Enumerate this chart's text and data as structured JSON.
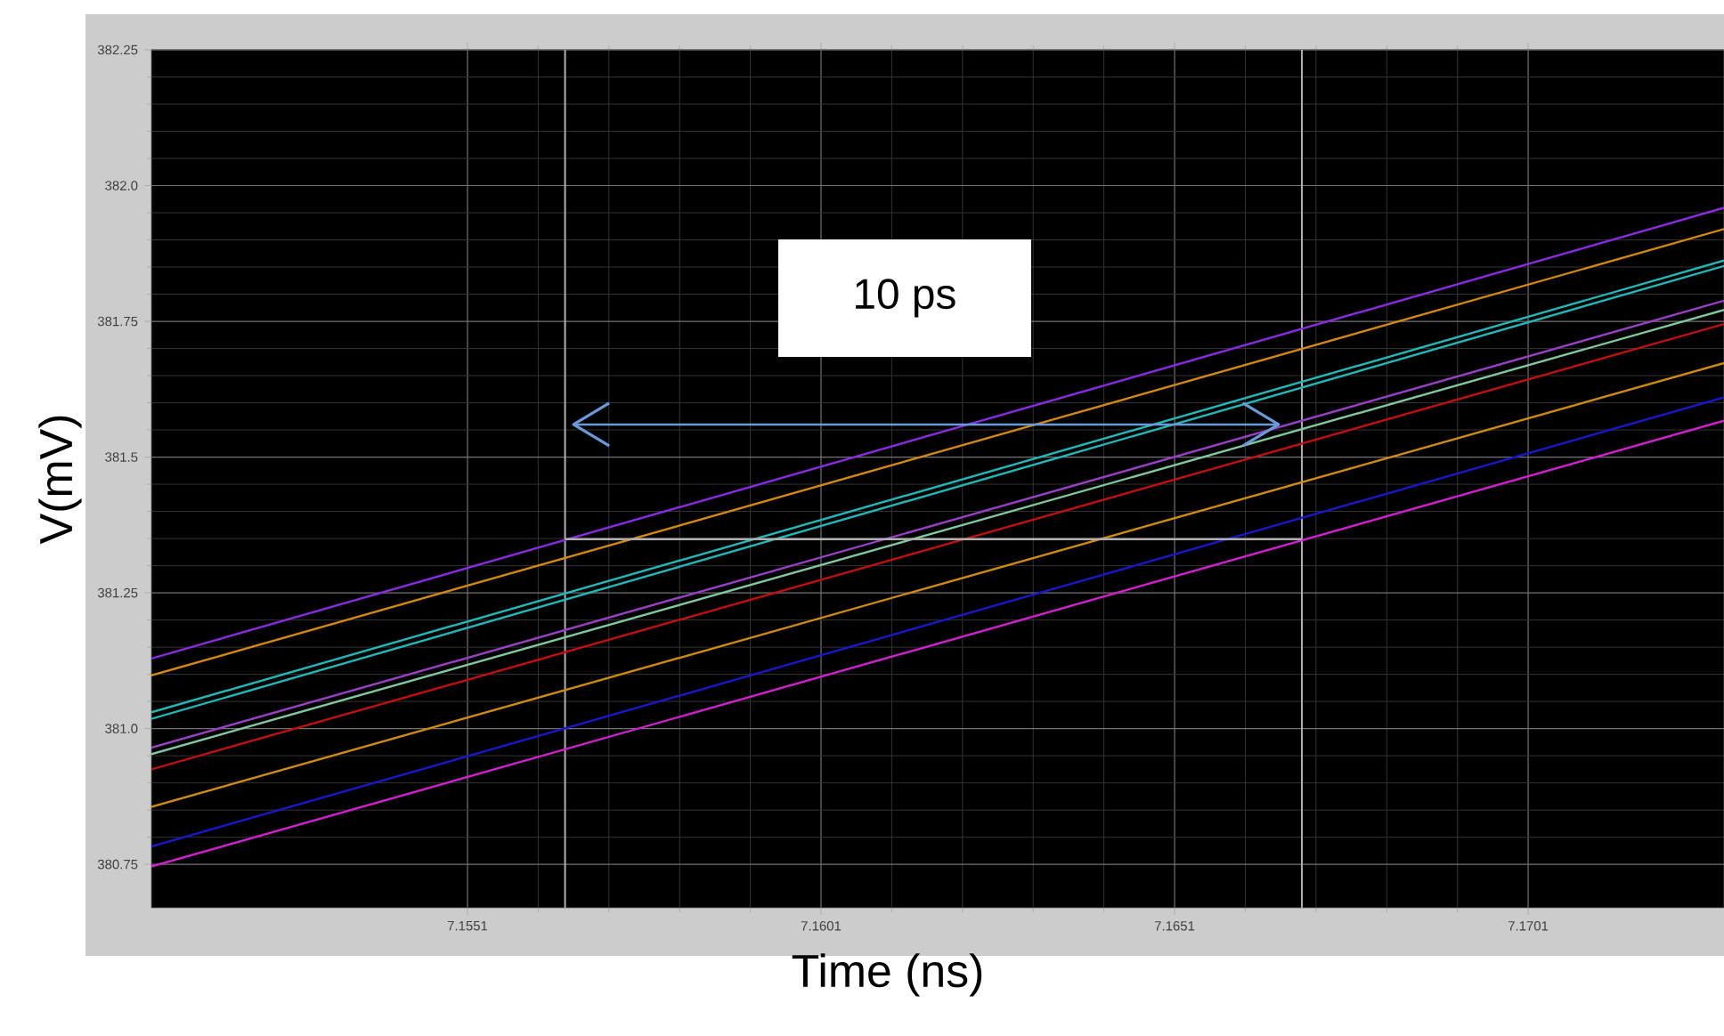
{
  "chart_data": {
    "type": "line",
    "xlabel": "Time (ns)",
    "ylabel": "V(mV)",
    "annotations": [
      "10 ps"
    ],
    "x": [
      7.15063,
      7.17287
    ],
    "xlim": [
      7.15063,
      7.17287
    ],
    "ylim": [
      380.67,
      382.25
    ],
    "xticks": [
      7.1551,
      7.1601,
      7.1651,
      7.1701
    ],
    "yticks": [
      {
        "value": 380.75,
        "label": "380.75"
      },
      {
        "value": 381.0,
        "label": "381.0"
      },
      {
        "value": 381.25,
        "label": "381.25"
      },
      {
        "value": 381.5,
        "label": "381.5"
      },
      {
        "value": 381.75,
        "label": "381.75"
      },
      {
        "value": 382.0,
        "label": "382.0"
      },
      {
        "value": 382.25,
        "label": "382.25"
      }
    ],
    "grid": true,
    "series": [
      {
        "color": "#8a2be2",
        "values": [
          381.129,
          381.959
        ]
      },
      {
        "color": "#d4880f",
        "values": [
          381.098,
          381.92
        ]
      },
      {
        "color": "#20b8b8",
        "values": [
          381.03,
          381.862
        ]
      },
      {
        "color": "#20b8b8",
        "values": [
          381.018,
          381.852
        ]
      },
      {
        "color": "#9a40c8",
        "values": [
          380.965,
          381.788
        ]
      },
      {
        "color": "#80c8a0",
        "values": [
          380.953,
          381.771
        ]
      },
      {
        "color": "#c01010",
        "values": [
          380.925,
          381.745
        ]
      },
      {
        "color": "#d08a10",
        "values": [
          380.856,
          381.673
        ]
      },
      {
        "color": "#1818c8",
        "values": [
          380.783,
          381.61
        ]
      },
      {
        "color": "#d020d0",
        "values": [
          380.746,
          381.567
        ]
      },
      {
        "color": "#b0b0b0",
        "x": [
          7.15648,
          7.1669
        ],
        "values": [
          381.349,
          381.349
        ]
      },
      {
        "color": "#6a9bd8",
        "x": [
          7.1566,
          7.16657
        ],
        "values": [
          381.56,
          381.56
        ]
      }
    ],
    "ref_lines": [
      {
        "axis": "x",
        "value": 7.15648,
        "color": "#b0b0b0"
      },
      {
        "axis": "x",
        "value": 7.1669,
        "color": "#b0b0b0"
      }
    ]
  }
}
